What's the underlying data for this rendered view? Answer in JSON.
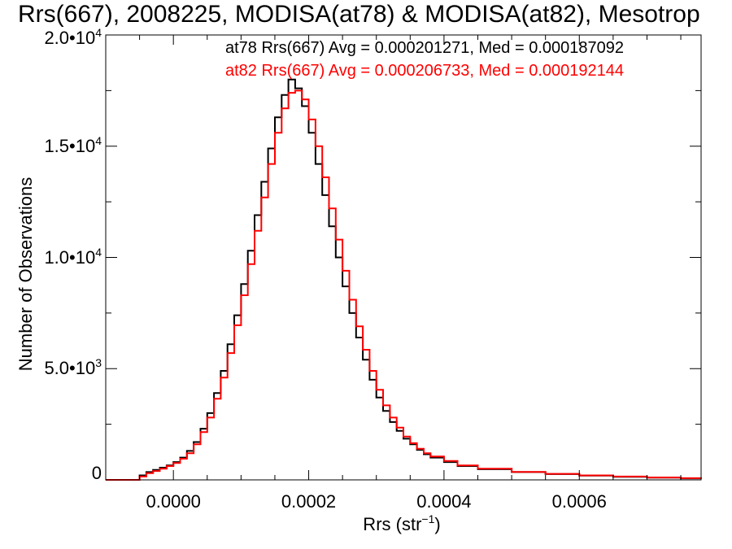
{
  "chart_data": {
    "type": "histogram-step",
    "title": "Rrs(667), 2008225, MODISA(at78) & MODISA(at82), Mesotrop",
    "xlabel": "Rrs (str",
    "xlabel_sup": "−1",
    "xlabel_close": ")",
    "ylabel": "Number of Observations",
    "xlim": [
      -0.0001,
      0.00078
    ],
    "ylim": [
      0,
      20000
    ],
    "x_ticks": [
      0.0,
      0.0002,
      0.0004,
      0.0006
    ],
    "x_tick_labels": [
      "0.0000",
      "0.0002",
      "0.0004",
      "0.0006"
    ],
    "y_ticks": [
      {
        "value": 0,
        "mantissa": "0",
        "exponent": ""
      },
      {
        "value": 5000,
        "mantissa": "5.0•10",
        "exponent": "3"
      },
      {
        "value": 10000,
        "mantissa": "1.0•10",
        "exponent": "4"
      },
      {
        "value": 15000,
        "mantissa": "1.5•10",
        "exponent": "4"
      },
      {
        "value": 20000,
        "mantissa": "2.0•10",
        "exponent": "4"
      }
    ],
    "series": [
      {
        "name": "at78",
        "color": "#000000",
        "stat_text": "at78 Rrs(667) Avg = 0.000201271, Med = 0.000187092",
        "avg": 0.000201271,
        "median": 0.000187092,
        "points": [
          [
            -0.0001,
            0
          ],
          [
            -6e-05,
            0
          ],
          [
            -5e-05,
            200
          ],
          [
            -4e-05,
            350
          ],
          [
            -3e-05,
            450
          ],
          [
            -2e-05,
            550
          ],
          [
            -1e-05,
            650
          ],
          [
            0.0,
            800
          ],
          [
            1e-05,
            1000
          ],
          [
            2e-05,
            1300
          ],
          [
            3e-05,
            1700
          ],
          [
            4e-05,
            2300
          ],
          [
            5e-05,
            3000
          ],
          [
            6e-05,
            3900
          ],
          [
            7e-05,
            4900
          ],
          [
            8e-05,
            6100
          ],
          [
            9e-05,
            7400
          ],
          [
            0.0001,
            8800
          ],
          [
            0.00011,
            10300
          ],
          [
            0.00012,
            11900
          ],
          [
            0.00013,
            13400
          ],
          [
            0.00014,
            14900
          ],
          [
            0.00015,
            16300
          ],
          [
            0.00016,
            17300
          ],
          [
            0.00017,
            18000
          ],
          [
            0.00018,
            17600
          ],
          [
            0.00019,
            16800
          ],
          [
            0.0002,
            15600
          ],
          [
            0.00021,
            14200
          ],
          [
            0.00022,
            12800
          ],
          [
            0.00023,
            11400
          ],
          [
            0.00024,
            10000
          ],
          [
            0.00025,
            8700
          ],
          [
            0.00026,
            7500
          ],
          [
            0.00027,
            6400
          ],
          [
            0.00028,
            5400
          ],
          [
            0.00029,
            4500
          ],
          [
            0.0003,
            3700
          ],
          [
            0.00031,
            3100
          ],
          [
            0.00032,
            2600
          ],
          [
            0.00033,
            2200
          ],
          [
            0.00034,
            1850
          ],
          [
            0.00035,
            1600
          ],
          [
            0.00036,
            1350
          ],
          [
            0.00037,
            1150
          ],
          [
            0.00038,
            1000
          ],
          [
            0.0004,
            800
          ],
          [
            0.00042,
            620
          ],
          [
            0.00045,
            480
          ],
          [
            0.0005,
            350
          ],
          [
            0.00055,
            260
          ],
          [
            0.0006,
            190
          ],
          [
            0.00065,
            140
          ],
          [
            0.0007,
            100
          ],
          [
            0.00075,
            70
          ],
          [
            0.00078,
            50
          ]
        ]
      },
      {
        "name": "at82",
        "color": "#ff0000",
        "stat_text": "at82 Rrs(667) Avg = 0.000206733, Med = 0.000192144",
        "avg": 0.000206733,
        "median": 0.000192144,
        "points": [
          [
            -0.0001,
            0
          ],
          [
            -6e-05,
            0
          ],
          [
            -5e-05,
            150
          ],
          [
            -4e-05,
            300
          ],
          [
            -3e-05,
            400
          ],
          [
            -2e-05,
            500
          ],
          [
            -1e-05,
            620
          ],
          [
            0.0,
            760
          ],
          [
            1e-05,
            950
          ],
          [
            2e-05,
            1200
          ],
          [
            3e-05,
            1600
          ],
          [
            4e-05,
            2150
          ],
          [
            5e-05,
            2800
          ],
          [
            6e-05,
            3650
          ],
          [
            7e-05,
            4600
          ],
          [
            8e-05,
            5700
          ],
          [
            9e-05,
            6950
          ],
          [
            0.0001,
            8300
          ],
          [
            0.00011,
            9700
          ],
          [
            0.00012,
            11200
          ],
          [
            0.00013,
            12700
          ],
          [
            0.00014,
            14200
          ],
          [
            0.00015,
            15600
          ],
          [
            0.00016,
            16700
          ],
          [
            0.00017,
            17400
          ],
          [
            0.00018,
            17500
          ],
          [
            0.00019,
            17100
          ],
          [
            0.0002,
            16200
          ],
          [
            0.00021,
            15000
          ],
          [
            0.00022,
            13600
          ],
          [
            0.00023,
            12200
          ],
          [
            0.00024,
            10800
          ],
          [
            0.00025,
            9400
          ],
          [
            0.00026,
            8100
          ],
          [
            0.00027,
            6900
          ],
          [
            0.00028,
            5850
          ],
          [
            0.00029,
            4900
          ],
          [
            0.0003,
            4050
          ],
          [
            0.00031,
            3350
          ],
          [
            0.00032,
            2800
          ],
          [
            0.00033,
            2350
          ],
          [
            0.00034,
            1950
          ],
          [
            0.00035,
            1650
          ],
          [
            0.00036,
            1400
          ],
          [
            0.00037,
            1200
          ],
          [
            0.00038,
            1050
          ],
          [
            0.0004,
            850
          ],
          [
            0.00042,
            650
          ],
          [
            0.00045,
            500
          ],
          [
            0.0005,
            360
          ],
          [
            0.00055,
            270
          ],
          [
            0.0006,
            200
          ],
          [
            0.00065,
            150
          ],
          [
            0.0007,
            105
          ],
          [
            0.00075,
            75
          ],
          [
            0.00078,
            55
          ]
        ]
      }
    ],
    "grid": false,
    "legend_placement": "top-right"
  }
}
